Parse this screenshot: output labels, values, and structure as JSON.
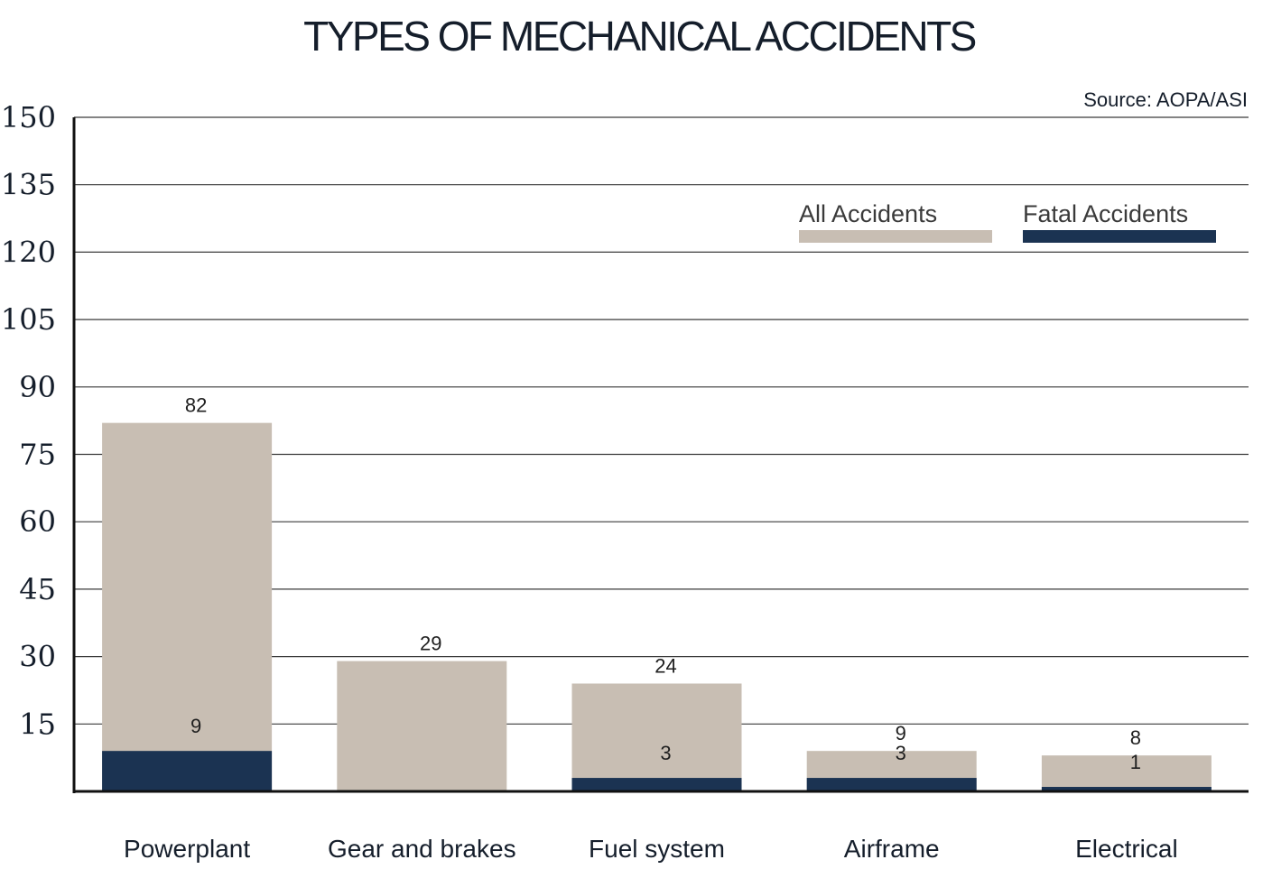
{
  "chart_data": {
    "type": "bar",
    "title": "TYPES OF MECHANICAL ACCIDENTS",
    "source": "Source: AOPA/ASI",
    "categories": [
      "Powerplant",
      "Gear and brakes",
      "Fuel system",
      "Airframe",
      "Electrical"
    ],
    "series": [
      {
        "name": "All Accidents",
        "values": [
          82,
          29,
          24,
          9,
          8
        ],
        "labels": [
          "82",
          "29",
          "24",
          "9",
          "8"
        ],
        "color": "#c8beb3"
      },
      {
        "name": "Fatal Accidents",
        "values": [
          9,
          0,
          3,
          3,
          1
        ],
        "labels": [
          "9",
          "",
          "3",
          "3",
          "1"
        ],
        "color": "#1b3352"
      }
    ],
    "overlay": true,
    "ylim": [
      0,
      150
    ],
    "yticks": [
      "15",
      "30",
      "45",
      "60",
      "75",
      "90",
      "105",
      "120",
      "135",
      "150"
    ],
    "grid": true,
    "legend_position": "top-right",
    "xlabel": "",
    "ylabel": ""
  }
}
